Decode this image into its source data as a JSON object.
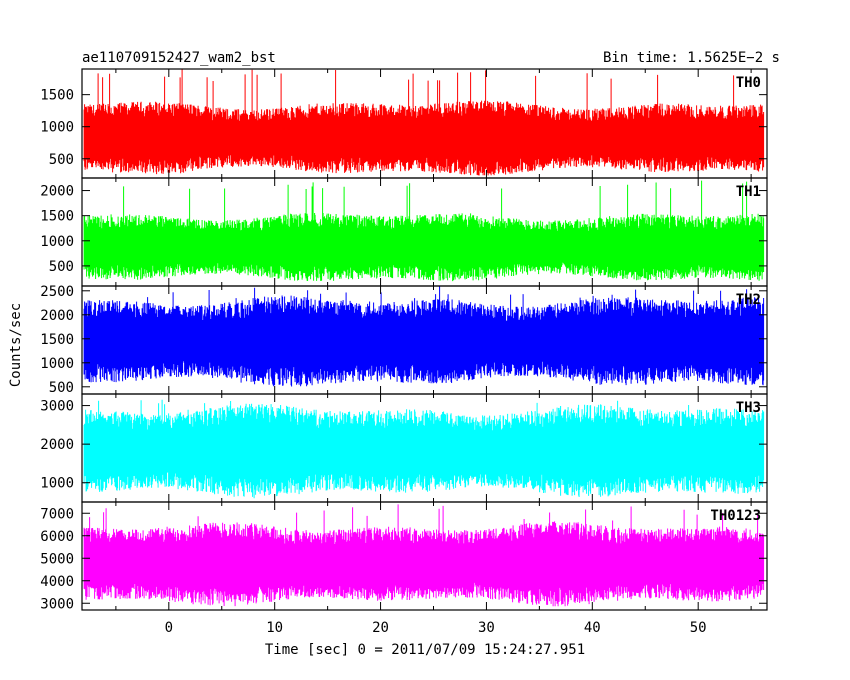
{
  "header": {
    "title": "ae110709152427_wam2_bst",
    "bin_time": "Bin time: 1.5625E−2 s"
  },
  "axes": {
    "ylabel": "Counts/sec",
    "xlabel": "Time [sec] 0 = 2011/07/09 15:24:27.951"
  },
  "chart_data": {
    "type": "line",
    "x_range": [
      -8.2,
      56.5
    ],
    "x_ticks": [
      0,
      10,
      20,
      30,
      40,
      50
    ],
    "x_data_range": [
      -8.0,
      56.2
    ],
    "bin_time_s": 0.015625,
    "panels": [
      {
        "name": "TH0",
        "color": "#ff0000",
        "ylim": [
          200,
          1900
        ],
        "y_ticks": [
          500,
          1000,
          1500
        ],
        "typical_range": [
          300,
          1350
        ],
        "peak": 1900
      },
      {
        "name": "TH1",
        "color": "#00ff00",
        "ylim": [
          100,
          2250
        ],
        "y_ticks": [
          500,
          1000,
          1500,
          2000
        ],
        "typical_range": [
          250,
          1500
        ],
        "peak": 2200
      },
      {
        "name": "TH2",
        "color": "#0000ff",
        "ylim": [
          350,
          2600
        ],
        "y_ticks": [
          500,
          1000,
          1500,
          2000,
          2500
        ],
        "typical_range": [
          600,
          2300
        ],
        "peak": 2600
      },
      {
        "name": "TH3",
        "color": "#00ffff",
        "ylim": [
          500,
          3300
        ],
        "y_ticks": [
          1000,
          2000,
          3000
        ],
        "typical_range": [
          750,
          2900
        ],
        "peak": 3200
      },
      {
        "name": "TH0123",
        "color": "#ff00ff",
        "ylim": [
          2700,
          7500
        ],
        "y_ticks": [
          3000,
          4000,
          5000,
          6000,
          7000
        ],
        "typical_range": [
          3100,
          6400
        ],
        "peak": 7400
      }
    ]
  }
}
